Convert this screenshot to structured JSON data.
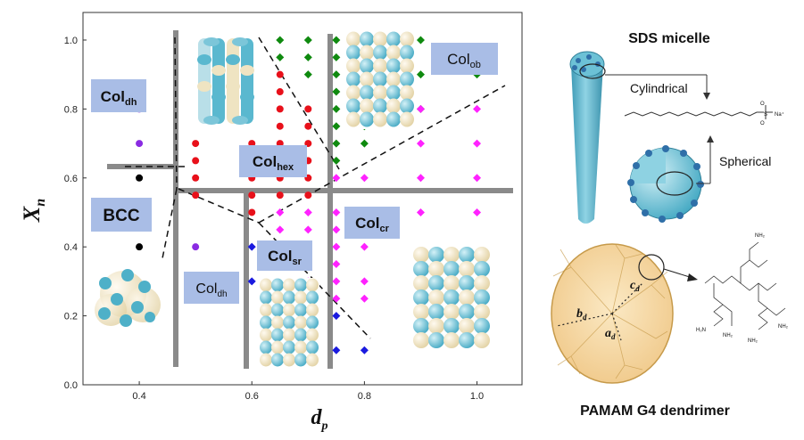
{
  "chart_data": {
    "type": "scatter",
    "xlabel_main": "d",
    "xlabel_sub": "p",
    "ylabel_main": "X",
    "ylabel_sub": "n",
    "xlim": [
      0.3,
      1.08
    ],
    "ylim": [
      0.0,
      1.08
    ],
    "x_ticks": [
      "0.4",
      "0.6",
      "0.8",
      "1.0"
    ],
    "y_ticks": [
      "0.0",
      "0.2",
      "0.4",
      "0.6",
      "0.8",
      "1.0"
    ],
    "x_tick_values": [
      0.4,
      0.6,
      0.8,
      1.0
    ],
    "y_tick_values": [
      0.0,
      0.2,
      0.4,
      0.6,
      0.8,
      1.0
    ],
    "grid": false,
    "series": [
      {
        "marker": "circle",
        "color": "#000000",
        "points": [
          [
            0.4,
            0.6
          ],
          [
            0.4,
            0.4
          ]
        ]
      },
      {
        "marker": "circle",
        "color": "#8a2be2",
        "points": [
          [
            0.4,
            0.8
          ],
          [
            0.4,
            0.7
          ],
          [
            0.5,
            0.4
          ]
        ]
      },
      {
        "marker": "circle",
        "color": "#e8101a",
        "points": [
          [
            0.5,
            0.7
          ],
          [
            0.5,
            0.65
          ],
          [
            0.5,
            0.6
          ],
          [
            0.5,
            0.55
          ],
          [
            0.6,
            0.7
          ],
          [
            0.6,
            0.65
          ],
          [
            0.6,
            0.6
          ],
          [
            0.6,
            0.55
          ],
          [
            0.6,
            0.5
          ],
          [
            0.65,
            0.9
          ],
          [
            0.65,
            0.85
          ],
          [
            0.65,
            0.8
          ],
          [
            0.65,
            0.75
          ],
          [
            0.65,
            0.7
          ],
          [
            0.65,
            0.65
          ],
          [
            0.65,
            0.6
          ],
          [
            0.65,
            0.55
          ],
          [
            0.7,
            0.8
          ],
          [
            0.7,
            0.75
          ],
          [
            0.7,
            0.7
          ],
          [
            0.7,
            0.65
          ],
          [
            0.7,
            0.6
          ],
          [
            0.7,
            0.55
          ]
        ]
      },
      {
        "marker": "diamond",
        "color": "#0f8a0f",
        "points": [
          [
            0.65,
            1.0
          ],
          [
            0.65,
            0.95
          ],
          [
            0.7,
            1.0
          ],
          [
            0.7,
            0.95
          ],
          [
            0.7,
            0.9
          ],
          [
            0.75,
            1.0
          ],
          [
            0.75,
            0.95
          ],
          [
            0.75,
            0.9
          ],
          [
            0.75,
            0.85
          ],
          [
            0.75,
            0.8
          ],
          [
            0.75,
            0.75
          ],
          [
            0.75,
            0.7
          ],
          [
            0.75,
            0.65
          ],
          [
            0.8,
            1.0
          ],
          [
            0.8,
            0.95
          ],
          [
            0.8,
            0.9
          ],
          [
            0.8,
            0.85
          ],
          [
            0.8,
            0.8
          ],
          [
            0.8,
            0.75
          ],
          [
            0.8,
            0.7
          ],
          [
            0.9,
            1.0
          ],
          [
            0.9,
            0.9
          ],
          [
            0.9,
            0.8
          ],
          [
            1.0,
            0.9
          ]
        ]
      },
      {
        "marker": "diamond",
        "color": "#ff22ff",
        "points": [
          [
            0.65,
            0.5
          ],
          [
            0.65,
            0.45
          ],
          [
            0.65,
            0.4
          ],
          [
            0.65,
            0.35
          ],
          [
            0.7,
            0.5
          ],
          [
            0.7,
            0.45
          ],
          [
            0.7,
            0.4
          ],
          [
            0.7,
            0.35
          ],
          [
            0.7,
            0.3
          ],
          [
            0.75,
            0.6
          ],
          [
            0.75,
            0.5
          ],
          [
            0.75,
            0.45
          ],
          [
            0.75,
            0.4
          ],
          [
            0.75,
            0.35
          ],
          [
            0.75,
            0.3
          ],
          [
            0.75,
            0.25
          ],
          [
            0.8,
            0.6
          ],
          [
            0.8,
            0.5
          ],
          [
            0.8,
            0.4
          ],
          [
            0.8,
            0.3
          ],
          [
            0.8,
            0.25
          ],
          [
            0.9,
            0.8
          ],
          [
            0.9,
            0.7
          ],
          [
            0.9,
            0.6
          ],
          [
            0.9,
            0.5
          ],
          [
            1.0,
            0.8
          ],
          [
            1.0,
            0.7
          ],
          [
            1.0,
            0.6
          ],
          [
            1.0,
            0.5
          ]
        ]
      },
      {
        "marker": "diamond",
        "color": "#1a1adf",
        "points": [
          [
            0.6,
            0.4
          ],
          [
            0.6,
            0.3
          ],
          [
            0.75,
            0.2
          ],
          [
            0.75,
            0.1
          ],
          [
            0.8,
            0.1
          ]
        ]
      }
    ]
  },
  "phase_labels": [
    {
      "main": "Col",
      "sub": "dh"
    },
    {
      "main": "Col",
      "sub": "ob"
    },
    {
      "main": "Col",
      "sub": "hex"
    },
    {
      "main": "BCC",
      "sub": ""
    },
    {
      "main": "Col",
      "sub": "cr"
    },
    {
      "main": "Col",
      "sub": "sr"
    },
    {
      "main": "Col",
      "sub": "dh"
    }
  ],
  "right_panel": {
    "sds_title": "SDS micelle",
    "cylindrical_label": "Cylindrical",
    "spherical_label": "Spherical",
    "na_label": "Na⁺",
    "pamam_title": "PAMAM G4 dendrimer",
    "axis_labels": [
      {
        "main": "c",
        "sub": "d"
      },
      {
        "main": "b",
        "sub": "d"
      },
      {
        "main": "a",
        "sub": "d"
      }
    ]
  },
  "colors": {
    "phase_label_bg": "#a9bde6",
    "boundary": "#808080",
    "micelle_teal": "#58b8cf",
    "micelle_dark": "#2f7f98",
    "sphere_cream": "#f1e6c2",
    "dendrimer_fill": "#f6ddb0"
  }
}
